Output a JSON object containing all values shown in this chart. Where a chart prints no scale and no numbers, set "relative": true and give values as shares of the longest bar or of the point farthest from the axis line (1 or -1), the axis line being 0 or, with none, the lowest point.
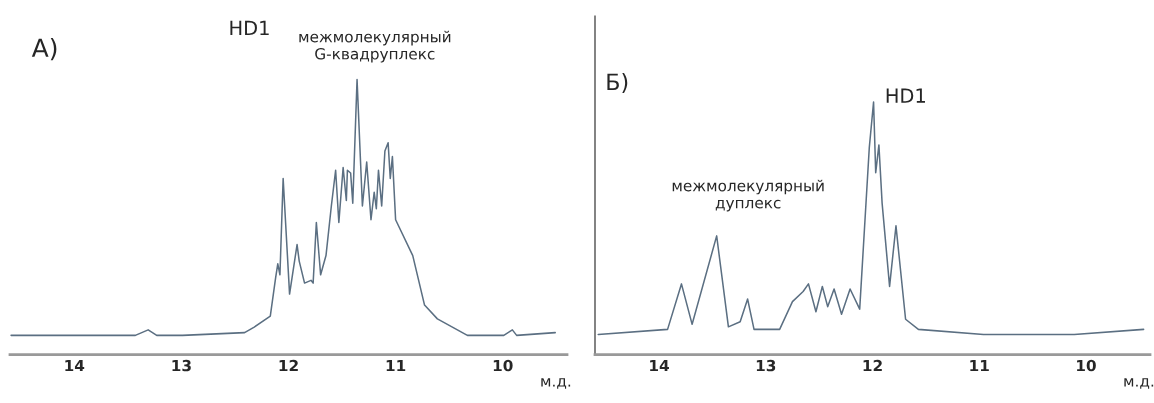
{
  "chart_data": [
    {
      "type": "line",
      "relative": true,
      "xlabel": "м.д.",
      "xlim": [
        14.6,
        9.4
      ],
      "xticks": [
        14,
        13,
        12,
        11,
        10
      ],
      "color": "#5b6f82",
      "grid": false,
      "x": [
        14.59,
        13.43,
        13.31,
        13.23,
        12.99,
        12.41,
        12.32,
        12.17,
        12.12,
        12.1,
        12.08,
        12.05,
        11.99,
        11.92,
        11.9,
        11.85,
        11.79,
        11.77,
        11.74,
        11.7,
        11.65,
        11.6,
        11.56,
        11.53,
        11.49,
        11.46,
        11.45,
        11.42,
        11.4,
        11.36,
        11.31,
        11.27,
        11.23,
        11.2,
        11.18,
        11.16,
        11.13,
        11.1,
        11.07,
        11.05,
        11.03,
        11.0,
        10.84,
        10.73,
        10.61,
        10.33,
        9.99,
        9.91,
        9.87,
        9.51
      ],
      "values": [
        0.07,
        0.07,
        0.09,
        0.07,
        0.07,
        0.08,
        0.1,
        0.14,
        0.28,
        0.33,
        0.29,
        0.64,
        0.22,
        0.4,
        0.34,
        0.26,
        0.27,
        0.26,
        0.48,
        0.29,
        0.36,
        0.54,
        0.67,
        0.48,
        0.68,
        0.56,
        0.67,
        0.66,
        0.55,
        1.0,
        0.54,
        0.7,
        0.49,
        0.59,
        0.53,
        0.67,
        0.54,
        0.74,
        0.77,
        0.64,
        0.72,
        0.49,
        0.36,
        0.18,
        0.13,
        0.07,
        0.07,
        0.09,
        0.07,
        0.08
      ],
      "annotations": [
        "А)",
        "HD1",
        "межмолекулярный\nG-квадруплекс"
      ]
    },
    {
      "type": "line",
      "relative": true,
      "xlabel": "м.д.",
      "xlim": [
        14.6,
        9.4
      ],
      "xticks": [
        14,
        13,
        12,
        11,
        10
      ],
      "color": "#5b6f82",
      "grid": false,
      "x": [
        14.57,
        13.92,
        13.79,
        13.69,
        13.46,
        13.35,
        13.24,
        13.17,
        13.11,
        12.87,
        12.75,
        12.65,
        12.6,
        12.53,
        12.47,
        12.42,
        12.36,
        12.29,
        12.21,
        12.12,
        12.03,
        11.99,
        11.97,
        11.94,
        11.91,
        11.84,
        11.78,
        11.69,
        11.57,
        10.96,
        10.11,
        9.46
      ],
      "values": [
        0.08,
        0.1,
        0.28,
        0.12,
        0.47,
        0.11,
        0.13,
        0.22,
        0.1,
        0.1,
        0.21,
        0.25,
        0.28,
        0.17,
        0.27,
        0.19,
        0.26,
        0.16,
        0.26,
        0.18,
        0.82,
        1.0,
        0.72,
        0.83,
        0.6,
        0.27,
        0.51,
        0.14,
        0.1,
        0.08,
        0.08,
        0.1
      ],
      "annotations": [
        "Б)",
        "межмолекулярный\nдуплекс",
        "HD1"
      ]
    }
  ]
}
